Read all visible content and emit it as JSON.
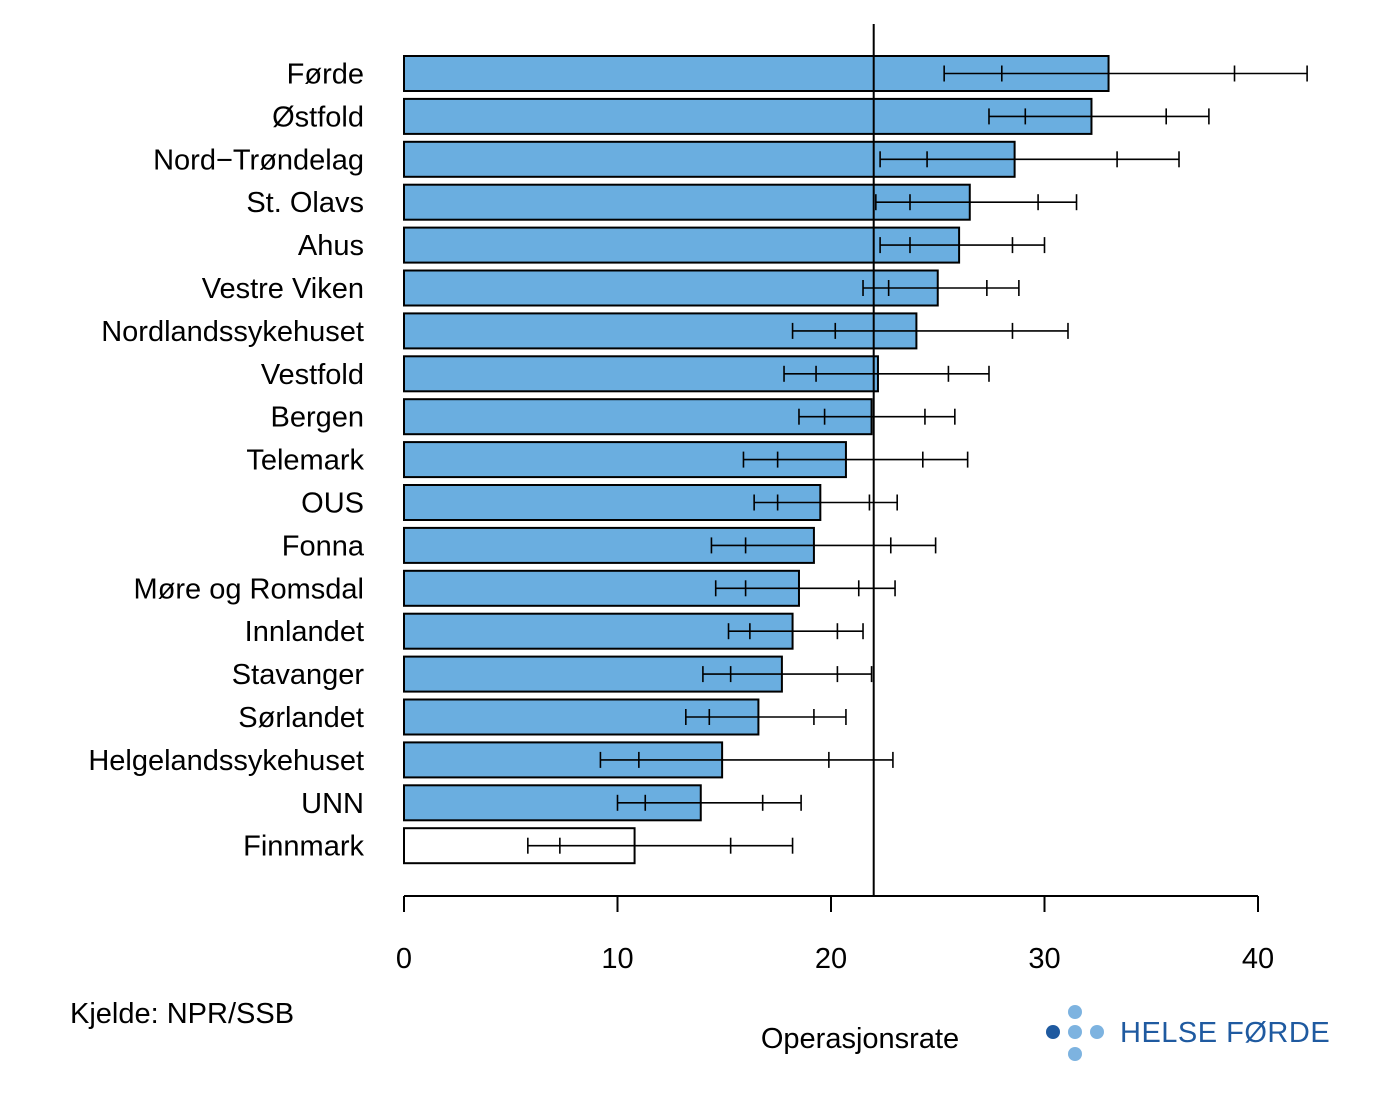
{
  "chart_data": {
    "type": "bar",
    "orientation": "horizontal",
    "categories": [
      "Førde",
      "Østfold",
      "Nord−Trøndelag",
      "St. Olavs",
      "Ahus",
      "Vestre Viken",
      "Nordlandssykehuset",
      "Vestfold",
      "Bergen",
      "Telemark",
      "OUS",
      "Fonna",
      "Møre og Romsdal",
      "Innlandet",
      "Stavanger",
      "Sørlandet",
      "Helgelandssykehuset",
      "UNN",
      "Finnmark"
    ],
    "values": [
      33.0,
      32.2,
      28.6,
      26.5,
      26.0,
      25.0,
      24.0,
      22.2,
      21.9,
      20.7,
      19.5,
      19.2,
      18.5,
      18.2,
      17.7,
      16.6,
      14.9,
      13.9,
      10.8
    ],
    "intervals": [
      {
        "outer_low": 25.3,
        "inner_low": 28.0,
        "inner_high": 38.9,
        "outer_high": 42.3
      },
      {
        "outer_low": 27.4,
        "inner_low": 29.1,
        "inner_high": 35.7,
        "outer_high": 37.7
      },
      {
        "outer_low": 22.3,
        "inner_low": 24.5,
        "inner_high": 33.4,
        "outer_high": 36.3
      },
      {
        "outer_low": 22.1,
        "inner_low": 23.7,
        "inner_high": 29.7,
        "outer_high": 31.5
      },
      {
        "outer_low": 22.3,
        "inner_low": 23.7,
        "inner_high": 28.5,
        "outer_high": 30.0
      },
      {
        "outer_low": 21.5,
        "inner_low": 22.7,
        "inner_high": 27.3,
        "outer_high": 28.8
      },
      {
        "outer_low": 18.2,
        "inner_low": 20.2,
        "inner_high": 28.5,
        "outer_high": 31.1
      },
      {
        "outer_low": 17.8,
        "inner_low": 19.3,
        "inner_high": 25.5,
        "outer_high": 27.4
      },
      {
        "outer_low": 18.5,
        "inner_low": 19.7,
        "inner_high": 24.4,
        "outer_high": 25.8
      },
      {
        "outer_low": 15.9,
        "inner_low": 17.5,
        "inner_high": 24.3,
        "outer_high": 26.4
      },
      {
        "outer_low": 16.4,
        "inner_low": 17.5,
        "inner_high": 21.8,
        "outer_high": 23.1
      },
      {
        "outer_low": 14.4,
        "inner_low": 16.0,
        "inner_high": 22.8,
        "outer_high": 24.9
      },
      {
        "outer_low": 14.6,
        "inner_low": 16.0,
        "inner_high": 21.3,
        "outer_high": 23.0
      },
      {
        "outer_low": 15.2,
        "inner_low": 16.2,
        "inner_high": 20.3,
        "outer_high": 21.5
      },
      {
        "outer_low": 14.0,
        "inner_low": 15.3,
        "inner_high": 20.3,
        "outer_high": 21.9
      },
      {
        "outer_low": 13.2,
        "inner_low": 14.3,
        "inner_high": 19.2,
        "outer_high": 20.7
      },
      {
        "outer_low": 9.2,
        "inner_low": 11.0,
        "inner_high": 19.9,
        "outer_high": 22.9
      },
      {
        "outer_low": 10.0,
        "inner_low": 11.3,
        "inner_high": 16.8,
        "outer_high": 18.6
      },
      {
        "outer_low": 5.8,
        "inner_low": 7.3,
        "inner_high": 15.3,
        "outer_high": 18.2
      }
    ],
    "highlighted": [
      true,
      true,
      true,
      true,
      true,
      true,
      true,
      true,
      true,
      true,
      true,
      true,
      true,
      true,
      true,
      true,
      true,
      true,
      false
    ],
    "reference_line": 22.0,
    "xlim": [
      0,
      40
    ],
    "xticks": [
      0,
      10,
      20,
      30,
      40
    ],
    "xlabel": "Operasjonsrate",
    "grid": false,
    "colors": {
      "bar_fill": "#6aaee0",
      "bar_fill_alt": "#ffffff",
      "stroke": "#000000"
    }
  },
  "footer": {
    "source": "Kjelde: NPR/SSB"
  },
  "logo": {
    "text": "HELSE FØRDE",
    "icon": "helse-forde-dots-icon",
    "colors": {
      "primary": "#1f5aa0",
      "secondary": "#7db3e0"
    }
  }
}
